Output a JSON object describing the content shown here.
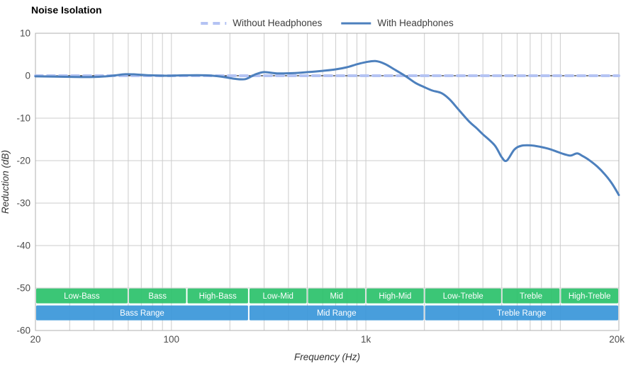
{
  "chart_data": {
    "type": "line",
    "title": "Noise Isolation",
    "xlabel": "Frequency (Hz)",
    "ylabel": "Reduction (dB)",
    "x_scale": "log",
    "xlim": [
      20,
      20000
    ],
    "ylim": [
      -60,
      10
    ],
    "grid": true,
    "legend_position": "top-center",
    "x_ticks": [
      {
        "v": 20,
        "label": "20"
      },
      {
        "v": 100,
        "label": "100"
      },
      {
        "v": 1000,
        "label": "1k"
      },
      {
        "v": 20000,
        "label": "20k"
      }
    ],
    "y_ticks": [
      {
        "v": 10,
        "label": "10"
      },
      {
        "v": 0,
        "label": "0"
      },
      {
        "v": -10,
        "label": "-10"
      },
      {
        "v": -20,
        "label": "-20"
      },
      {
        "v": -30,
        "label": "-30"
      },
      {
        "v": -40,
        "label": "-40"
      },
      {
        "v": -50,
        "label": "-50"
      },
      {
        "v": -60,
        "label": "-60"
      }
    ],
    "x_gridlines": [
      30,
      40,
      50,
      60,
      70,
      80,
      90,
      100,
      200,
      300,
      400,
      500,
      600,
      700,
      800,
      900,
      1000,
      2000,
      3000,
      4000,
      5000,
      6000,
      7000,
      8000,
      9000,
      10000
    ],
    "zero_line_value": 0,
    "colors": {
      "grid": "#cccccc",
      "border": "#b0b0b0",
      "zero_line": "#000000",
      "tick_text": "#4d4d4d",
      "axis_title_text": "#333333",
      "title_text": "#000000",
      "legend_text": "#3d3d3d",
      "band_text": "#ffffff"
    },
    "series": [
      {
        "name": "Without Headphones",
        "color": "#b4c3f3",
        "style": "dashed",
        "stroke_width": 4,
        "points": [
          [
            20,
            0
          ],
          [
            20000,
            0
          ]
        ]
      },
      {
        "name": "With Headphones",
        "color": "#4d80bd",
        "style": "solid",
        "stroke_width": 3,
        "points": [
          [
            20,
            -0.15
          ],
          [
            25,
            -0.2
          ],
          [
            32,
            -0.3
          ],
          [
            40,
            -0.3
          ],
          [
            46,
            -0.15
          ],
          [
            52,
            0.1
          ],
          [
            58,
            0.35
          ],
          [
            66,
            0.3
          ],
          [
            78,
            0.1
          ],
          [
            95,
            0
          ],
          [
            115,
            0.1
          ],
          [
            150,
            0.1
          ],
          [
            180,
            -0.2
          ],
          [
            210,
            -0.7
          ],
          [
            240,
            -0.8
          ],
          [
            270,
            0.3
          ],
          [
            300,
            0.85
          ],
          [
            350,
            0.55
          ],
          [
            420,
            0.6
          ],
          [
            500,
            0.85
          ],
          [
            600,
            1.15
          ],
          [
            700,
            1.5
          ],
          [
            800,
            2.0
          ],
          [
            900,
            2.7
          ],
          [
            1000,
            3.2
          ],
          [
            1120,
            3.45
          ],
          [
            1250,
            2.8
          ],
          [
            1400,
            1.5
          ],
          [
            1600,
            -0.1
          ],
          [
            1800,
            -1.7
          ],
          [
            2000,
            -2.7
          ],
          [
            2200,
            -3.5
          ],
          [
            2450,
            -4.1
          ],
          [
            2700,
            -5.6
          ],
          [
            3000,
            -8.0
          ],
          [
            3400,
            -10.8
          ],
          [
            3700,
            -12.3
          ],
          [
            4000,
            -13.8
          ],
          [
            4600,
            -16.4
          ],
          [
            5000,
            -19.2
          ],
          [
            5300,
            -20.0
          ],
          [
            5800,
            -17.4
          ],
          [
            6300,
            -16.5
          ],
          [
            7000,
            -16.4
          ],
          [
            7800,
            -16.7
          ],
          [
            8700,
            -17.2
          ],
          [
            9500,
            -17.8
          ],
          [
            10500,
            -18.5
          ],
          [
            11300,
            -18.8
          ],
          [
            12200,
            -18.3
          ],
          [
            13000,
            -18.9
          ],
          [
            14000,
            -19.8
          ],
          [
            15500,
            -21.4
          ],
          [
            17000,
            -23.3
          ],
          [
            18500,
            -25.5
          ],
          [
            20000,
            -28.1
          ]
        ]
      }
    ],
    "bands": [
      {
        "group": "sub-range",
        "color": "#2cc26c",
        "top_db": -50.1,
        "bottom_db": -53.6,
        "items": [
          {
            "label": "Low-Bass",
            "from": 20,
            "to": 60
          },
          {
            "label": "Bass",
            "from": 60,
            "to": 120
          },
          {
            "label": "High-Bass",
            "from": 120,
            "to": 250
          },
          {
            "label": "Low-Mid",
            "from": 250,
            "to": 500
          },
          {
            "label": "Mid",
            "from": 500,
            "to": 1000
          },
          {
            "label": "High-Mid",
            "from": 1000,
            "to": 2000
          },
          {
            "label": "Low-Treble",
            "from": 2000,
            "to": 5000
          },
          {
            "label": "Treble",
            "from": 5000,
            "to": 10000
          },
          {
            "label": "High-Treble",
            "from": 10000,
            "to": 20000
          }
        ]
      },
      {
        "group": "main-range",
        "color": "#3a97d9",
        "top_db": -54.1,
        "bottom_db": -57.6,
        "items": [
          {
            "label": "Bass Range",
            "from": 20,
            "to": 250
          },
          {
            "label": "Mid Range",
            "from": 250,
            "to": 2000
          },
          {
            "label": "Treble Range",
            "from": 2000,
            "to": 20000
          }
        ]
      }
    ]
  }
}
